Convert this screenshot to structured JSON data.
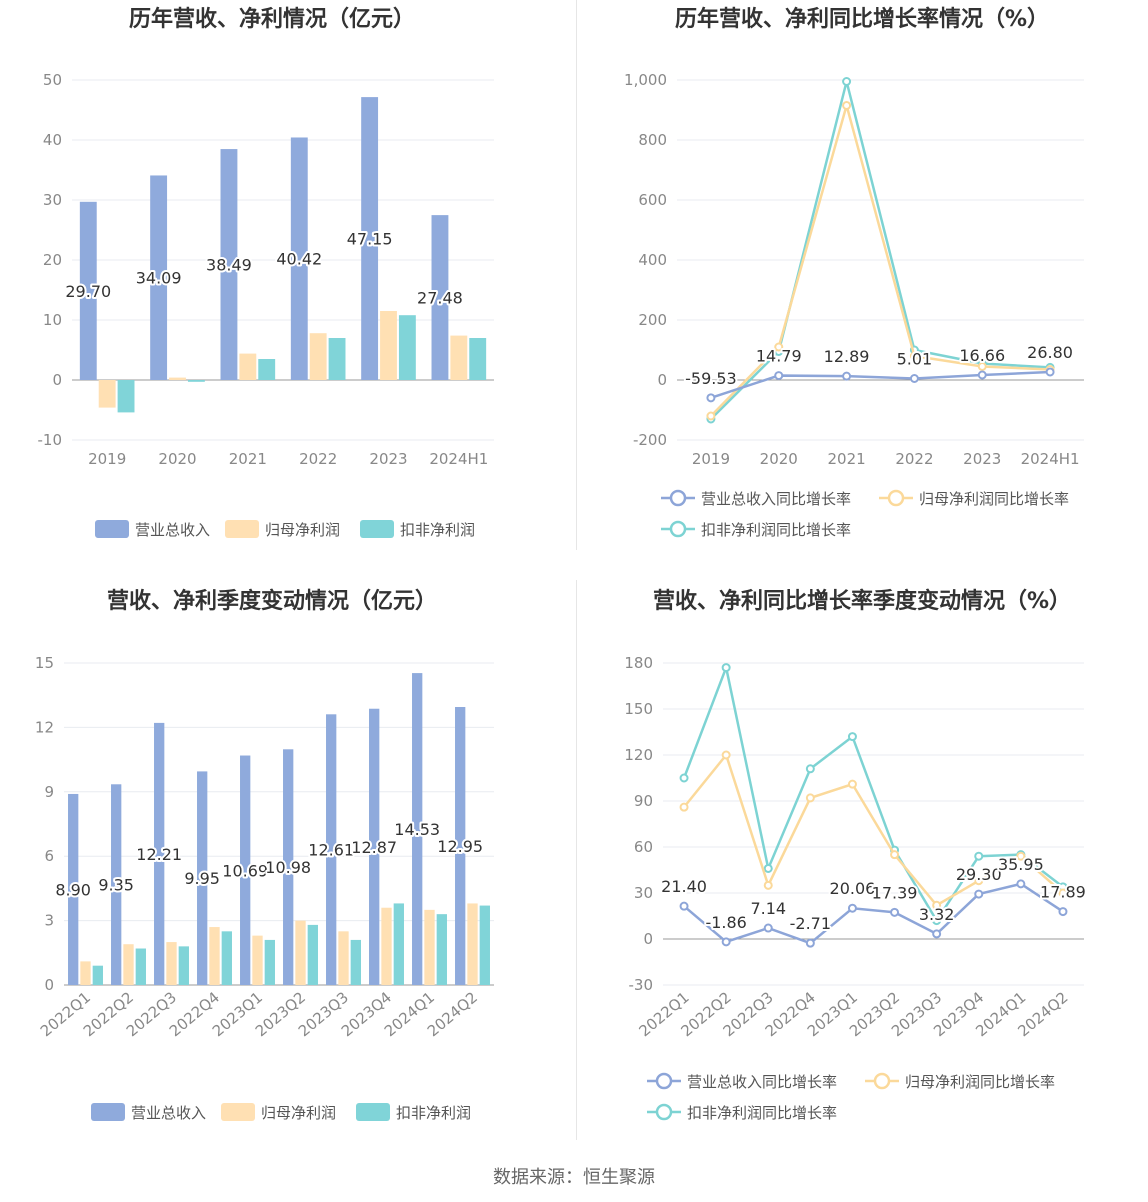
{
  "colors": {
    "revenue": "#8faadc",
    "parent_profit": "#ffe0b3",
    "nonrec_profit": "#80d4d8",
    "rev_growth": "#8da5d8",
    "parent_growth": "#fbd99a",
    "nonrec_growth": "#7dd3d3"
  },
  "footer": "数据来源：恒生聚源",
  "chart_data": [
    {
      "type": "bar",
      "title": "历年营收、净利情况（亿元）",
      "categories": [
        "2019",
        "2020",
        "2021",
        "2022",
        "2023",
        "2024H1"
      ],
      "ylim": [
        -10,
        50
      ],
      "yticks": [
        "-10",
        "0",
        "10",
        "20",
        "30",
        "40",
        "50"
      ],
      "series": [
        {
          "name": "营业总收入",
          "values": [
            29.7,
            34.09,
            38.49,
            40.42,
            47.15,
            27.48
          ],
          "labels": [
            "29.70",
            "34.09",
            "38.49",
            "40.42",
            "47.15",
            "27.48"
          ]
        },
        {
          "name": "归母净利润",
          "values": [
            -4.6,
            0.4,
            4.4,
            7.8,
            11.5,
            7.4
          ]
        },
        {
          "name": "扣非净利润",
          "values": [
            -5.4,
            -0.3,
            3.5,
            7.0,
            10.8,
            7.0
          ]
        }
      ],
      "legend_position": "bottom",
      "grid": true
    },
    {
      "type": "line",
      "title": "历年营收、净利同比增长率情况（%）",
      "categories": [
        "2019",
        "2020",
        "2021",
        "2022",
        "2023",
        "2024H1"
      ],
      "ylim": [
        -200,
        1000
      ],
      "yticks": [
        "-200",
        "0",
        "200",
        "400",
        "600",
        "800",
        "1,000"
      ],
      "series": [
        {
          "name": "营业总收入同比增长率",
          "values": [
            -59.53,
            14.79,
            12.89,
            5.01,
            16.66,
            26.8
          ],
          "labels": [
            "-59.53",
            "14.79",
            "12.89",
            "5.01",
            "16.66",
            "26.80"
          ]
        },
        {
          "name": "归母净利润同比增长率",
          "values": [
            -120,
            110,
            915,
            80,
            45,
            35
          ]
        },
        {
          "name": "扣非净利润同比增长率",
          "values": [
            -130,
            95,
            995,
            100,
            55,
            42
          ]
        }
      ],
      "legend_position": "bottom",
      "grid": true
    },
    {
      "type": "bar",
      "title": "营收、净利季度变动情况（亿元）",
      "categories": [
        "2022Q1",
        "2022Q2",
        "2022Q3",
        "2022Q4",
        "2023Q1",
        "2023Q2",
        "2023Q3",
        "2023Q4",
        "2024Q1",
        "2024Q2"
      ],
      "ylim": [
        0,
        15
      ],
      "yticks": [
        "0",
        "3",
        "6",
        "9",
        "12",
        "15"
      ],
      "series": [
        {
          "name": "营业总收入",
          "values": [
            8.9,
            9.35,
            12.21,
            9.95,
            10.69,
            10.98,
            12.61,
            12.87,
            14.53,
            12.95
          ],
          "labels": [
            "8.90",
            "9.35",
            "12.21",
            "9.95",
            "10.69",
            "10.98",
            "12.61",
            "12.87",
            "14.53",
            "12.95"
          ]
        },
        {
          "name": "归母净利润",
          "values": [
            1.1,
            1.9,
            2.0,
            2.7,
            2.3,
            3.0,
            2.5,
            3.6,
            3.5,
            3.8
          ]
        },
        {
          "name": "扣非净利润",
          "values": [
            0.9,
            1.7,
            1.8,
            2.5,
            2.1,
            2.8,
            2.1,
            3.8,
            3.3,
            3.7
          ]
        }
      ],
      "legend_position": "bottom",
      "grid": true
    },
    {
      "type": "line",
      "title": "营收、净利同比增长率季度变动情况（%）",
      "categories": [
        "2022Q1",
        "2022Q2",
        "2022Q3",
        "2022Q4",
        "2023Q1",
        "2023Q2",
        "2023Q3",
        "2023Q4",
        "2024Q1",
        "2024Q2"
      ],
      "ylim": [
        -30,
        180
      ],
      "yticks": [
        "-30",
        "0",
        "30",
        "60",
        "90",
        "120",
        "150",
        "180"
      ],
      "series": [
        {
          "name": "营业总收入同比增长率",
          "values": [
            21.4,
            -1.86,
            7.14,
            -2.71,
            20.06,
            17.39,
            3.32,
            29.3,
            35.95,
            17.89
          ],
          "labels": [
            "21.40",
            "-1.86",
            "7.14",
            "-2.71",
            "20.06",
            "17.39",
            "3.32",
            "29.30",
            "35.95",
            "17.89"
          ]
        },
        {
          "name": "归母净利润同比增长率",
          "values": [
            86,
            120,
            35,
            92,
            101,
            55,
            22,
            38,
            54,
            30
          ]
        },
        {
          "name": "扣非净利润同比增长率",
          "values": [
            105,
            177,
            46,
            111,
            132,
            58,
            12,
            54,
            55,
            34
          ]
        }
      ],
      "legend_position": "bottom",
      "grid": true
    }
  ]
}
